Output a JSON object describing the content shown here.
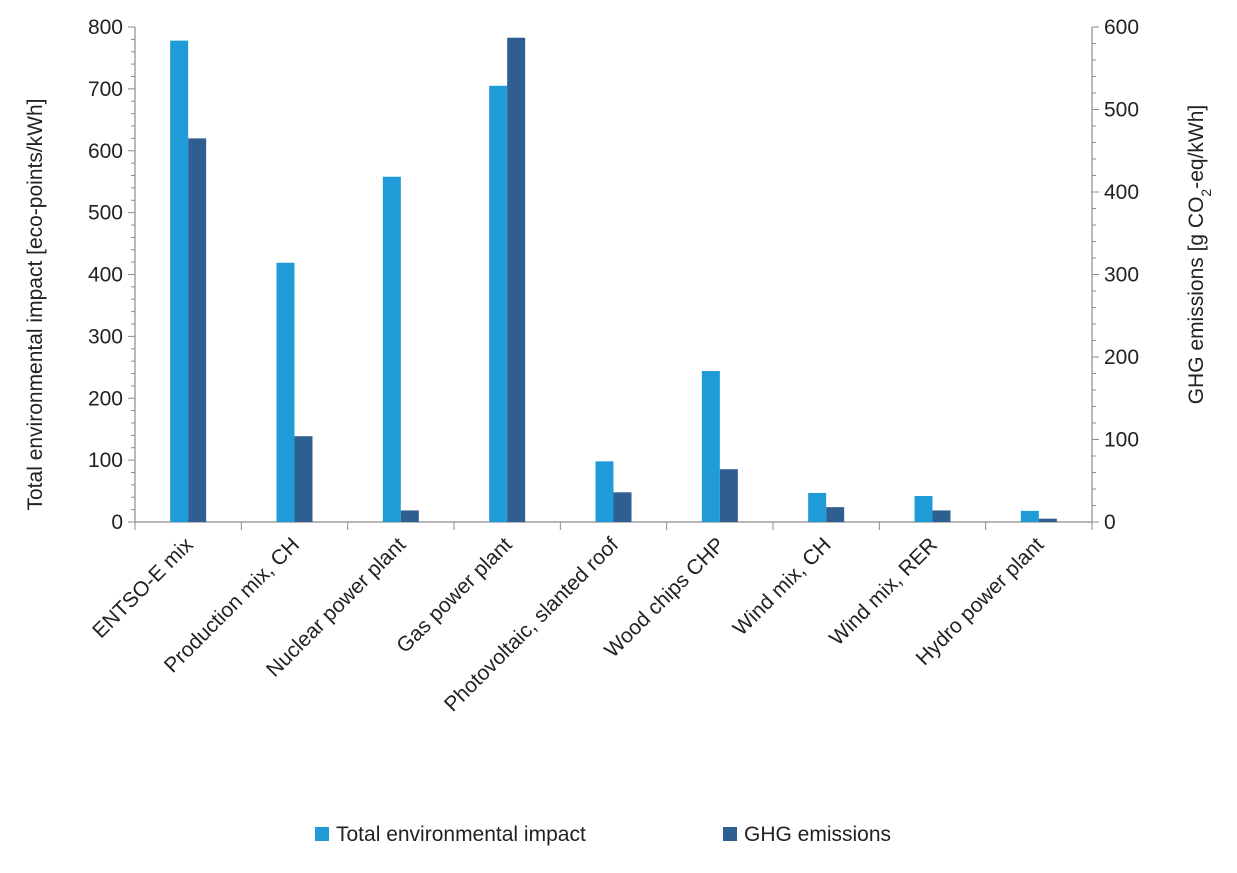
{
  "chart_data": {
    "type": "bar",
    "categories": [
      "ENTSO-E mix",
      "Production mix, CH",
      "Nuclear power plant",
      "Gas power plant",
      "Photovoltaic, slanted roof",
      "Wood chips CHP",
      "Wind mix, CH",
      "Wind mix, RER",
      "Hydro power plant"
    ],
    "series": [
      {
        "name": "Total environmental impact",
        "axis": "left",
        "color": "#1f9bd7",
        "values": [
          778,
          419,
          558,
          705,
          98,
          244,
          47,
          42,
          18
        ]
      },
      {
        "name": "GHG emissions",
        "axis": "right",
        "color": "#2f5f91",
        "values": [
          465,
          104,
          14,
          587,
          36,
          64,
          18,
          14,
          4
        ]
      }
    ],
    "ylabel_left": "Total environmental impact [eco-points/kWh]",
    "ylabel_right": {
      "prefix": "GHG emissions [g CO",
      "subscript": "2",
      "suffix": "-eq/kWh]"
    },
    "ylim_left": [
      0,
      800
    ],
    "ylim_right": [
      0,
      600
    ],
    "yticks_left": [
      0,
      100,
      200,
      300,
      400,
      500,
      600,
      700,
      800
    ],
    "yticks_right": [
      0,
      100,
      200,
      300,
      400,
      500,
      600
    ],
    "grid": false,
    "legend_position": "bottom"
  }
}
